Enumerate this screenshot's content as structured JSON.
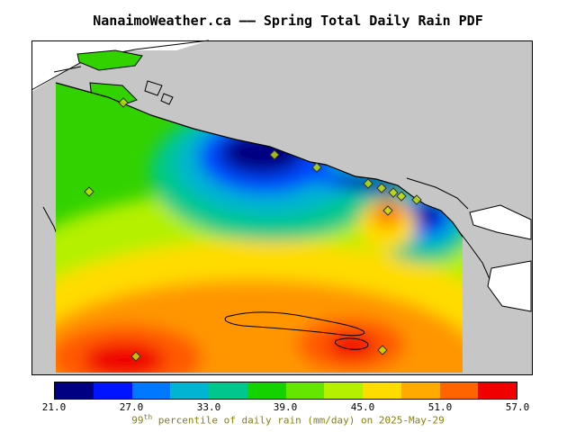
{
  "title": "NanaimoWeather.ca —— Spring Total Daily Rain PDF",
  "caption": {
    "prefix": "99",
    "sup": "th",
    "text": " percentile of daily rain (mm/day) on 2025-May-29"
  },
  "colorbar": {
    "tick_labels": [
      "21.0",
      "27.0",
      "33.0",
      "39.0",
      "45.0",
      "51.0",
      "57.0"
    ],
    "colors": [
      "#000082",
      "#0014ff",
      "#0078ff",
      "#00b4d2",
      "#00c88c",
      "#14d200",
      "#64e600",
      "#b4f000",
      "#ffdc00",
      "#ffaa00",
      "#ff6400",
      "#f00000"
    ]
  },
  "colors": {
    "caption_text": "#8a8000",
    "land": "#c6c6c6",
    "no_data_water": "#ffffff",
    "field_base_green": "#32d200"
  },
  "chart_data": {
    "type": "heatmap",
    "title": "NanaimoWeather.ca —— Spring Total Daily Rain PDF",
    "variable": "99th percentile of daily rain",
    "units": "mm/day",
    "date": "2025-May-29",
    "legend_position": "bottom",
    "grid": false,
    "colorbar_range": [
      21.0,
      57.0
    ],
    "colorbar_tick_labels": [
      "21.0",
      "27.0",
      "33.0",
      "39.0",
      "45.0",
      "51.0",
      "57.0"
    ],
    "colorbar_levels": [
      21,
      24,
      27,
      30,
      33,
      36,
      39,
      42,
      45,
      48,
      51,
      54,
      57
    ],
    "colorbar_colors": [
      "#000082",
      "#0014ff",
      "#0078ff",
      "#00b4d2",
      "#00c88c",
      "#14d200",
      "#64e600",
      "#b4f000",
      "#ffdc00",
      "#ffaa00",
      "#ff6400",
      "#f00000"
    ],
    "features": [
      {
        "name": "minimum-core-offshore",
        "approx_value_mm_day": "21-24",
        "location": "upper-center of strait, ringed by blue/cyan/teal bands"
      },
      {
        "name": "minimum-pocket-east-coast",
        "approx_value_mm_day": "21-27",
        "location": "small pocket against right-side coastline"
      },
      {
        "name": "local-maximum-near-coast",
        "approx_value_mm_day": "51-57",
        "location": "small red/orange spot adjacent to coast near station cluster"
      },
      {
        "name": "maximum-core-southwest",
        "approx_value_mm_day": "54-57",
        "location": "bottom-left red core surrounded by orange"
      },
      {
        "name": "maximum-core-south-central",
        "approx_value_mm_day": "54-57",
        "location": "bottom-center-right red core surrounded by orange"
      },
      {
        "name": "background-field",
        "approx_value_mm_day": "39-45",
        "location": "broad green/yellow-green middle band"
      }
    ],
    "station_markers_count": 12
  }
}
